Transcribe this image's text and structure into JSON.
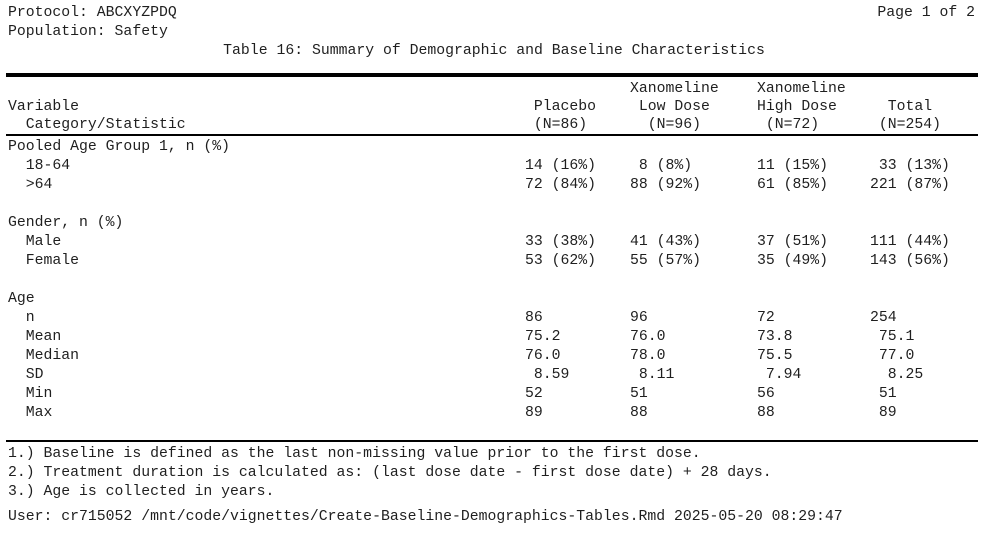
{
  "header": {
    "protocol": "Protocol: ABCXYZPDQ",
    "population": "Population: Safety",
    "page_indicator": "Page 1 of 2",
    "title": "Table 16: Summary of Demographic and Baseline Characteristics"
  },
  "table": {
    "column_headers": {
      "variable": "Variable\n  Category/Statistic",
      "placebo": " Placebo\n (N=86)",
      "low_dose": "Xanomeline\n Low Dose\n  (N=96)",
      "high_dose": "Xanomeline\nHigh Dose\n (N=72)",
      "total": "  Total\n (N=254)"
    },
    "groups": {
      "placebo_n": 86,
      "low_dose_n": 96,
      "high_dose_n": 72,
      "total_n": 254
    },
    "sections": [
      {
        "label": "Pooled Age Group 1, n (%)",
        "rows": [
          {
            "label": "  18-64",
            "cells": [
              "14 (16%)",
              " 8 (8%)",
              "11 (15%)",
              " 33 (13%)"
            ]
          },
          {
            "label": "  >64",
            "cells": [
              "72 (84%)",
              "88 (92%)",
              "61 (85%)",
              "221 (87%)"
            ]
          }
        ]
      },
      {
        "label": "Gender, n (%)",
        "rows": [
          {
            "label": "  Male",
            "cells": [
              "33 (38%)",
              "41 (43%)",
              "37 (51%)",
              "111 (44%)"
            ]
          },
          {
            "label": "  Female",
            "cells": [
              "53 (62%)",
              "55 (57%)",
              "35 (49%)",
              "143 (56%)"
            ]
          }
        ]
      },
      {
        "label": "Age",
        "rows": [
          {
            "label": "  n",
            "cells": [
              "86",
              "96",
              "72",
              "254"
            ]
          },
          {
            "label": "  Mean",
            "cells": [
              "75.2",
              "76.0",
              "73.8",
              " 75.1"
            ]
          },
          {
            "label": "  Median",
            "cells": [
              "76.0",
              "78.0",
              "75.5",
              " 77.0"
            ]
          },
          {
            "label": "  SD",
            "cells": [
              " 8.59",
              " 8.11",
              " 7.94",
              "  8.25"
            ]
          },
          {
            "label": "  Min",
            "cells": [
              "52",
              "51",
              "56",
              " 51"
            ]
          },
          {
            "label": "  Max",
            "cells": [
              "89",
              "88",
              "88",
              " 89"
            ]
          }
        ]
      }
    ]
  },
  "footnotes": [
    "1.) Baseline is defined as the last non-missing value prior to the first dose.",
    "2.) Treatment duration is calculated as: (last dose date - first dose date) + 28 days.",
    "3.) Age is collected in years."
  ],
  "footer": {
    "text": "User: cr715052 /mnt/code/vignettes/Create-Baseline-Demographics-Tables.Rmd 2025-05-20 08:29:47"
  }
}
